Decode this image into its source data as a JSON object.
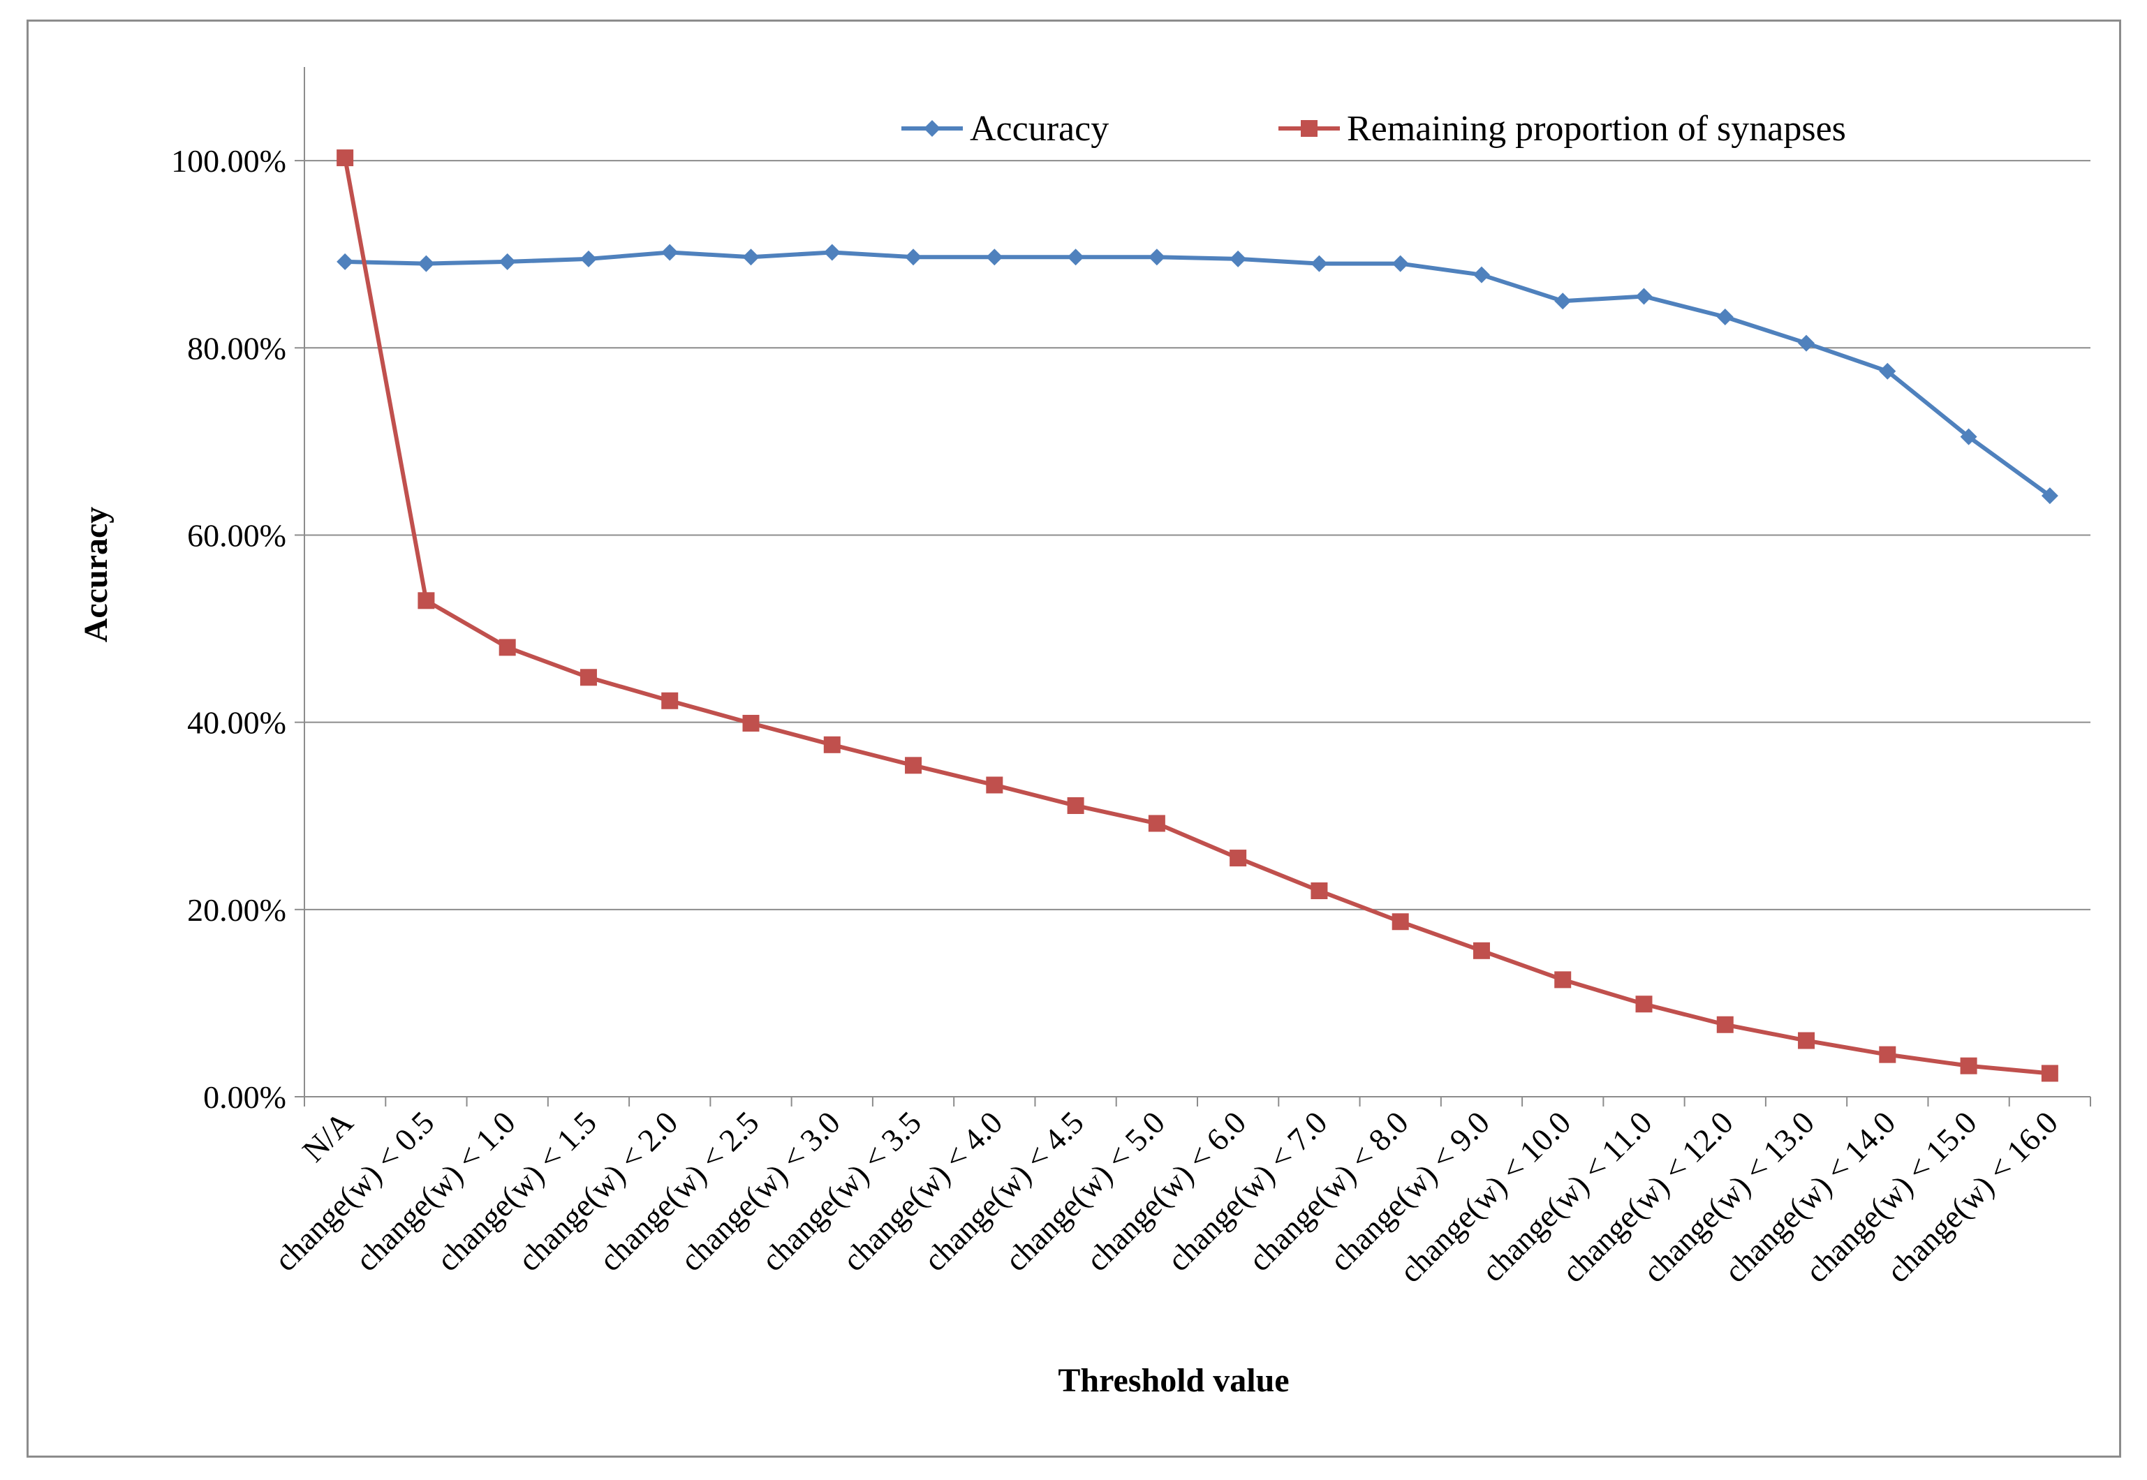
{
  "chart_data": {
    "type": "line",
    "title": "",
    "xlabel": "Threshold value",
    "ylabel": "Accuracy",
    "ylim": [
      0,
      1.1
    ],
    "yticks": [
      0,
      0.2,
      0.4,
      0.6,
      0.8,
      1.0
    ],
    "ytick_labels": [
      "0.00%",
      "20.00%",
      "40.00%",
      "60.00%",
      "80.00%",
      "100.00%"
    ],
    "grid": "horizontal",
    "legend_position": "top",
    "categories": [
      "N/A",
      "change(w) < 0.5",
      "change(w) < 1.0",
      "change(w) < 1.5",
      "change(w) < 2.0",
      "change(w) < 2.5",
      "change(w) < 3.0",
      "change(w) < 3.5",
      "change(w) < 4.0",
      "change(w) < 4.5",
      "change(w) < 5.0",
      "change(w) < 6.0",
      "change(w) < 7.0",
      "change(w) < 8.0",
      "change(w) < 9.0",
      "change(w) < 10.0",
      "change(w) < 11.0",
      "change(w) < 12.0",
      "change(w) < 13.0",
      "change(w) < 14.0",
      "change(w) < 15.0",
      "change(w) < 16.0"
    ],
    "series": [
      {
        "name": "Accuracy",
        "color": "#4f81bd",
        "marker": "diamond",
        "values": [
          0.892,
          0.89,
          0.892,
          0.895,
          0.902,
          0.897,
          0.902,
          0.897,
          0.897,
          0.897,
          0.897,
          0.895,
          0.89,
          0.89,
          0.878,
          0.85,
          0.855,
          0.833,
          0.805,
          0.775,
          0.705,
          0.642
        ]
      },
      {
        "name": "Remaining proportion of synapses",
        "color": "#c0504d",
        "marker": "square",
        "values": [
          1.003,
          0.53,
          0.48,
          0.448,
          0.423,
          0.399,
          0.376,
          0.354,
          0.333,
          0.311,
          0.292,
          0.255,
          0.22,
          0.187,
          0.156,
          0.125,
          0.099,
          0.077,
          0.06,
          0.045,
          0.033,
          0.025
        ]
      }
    ]
  }
}
